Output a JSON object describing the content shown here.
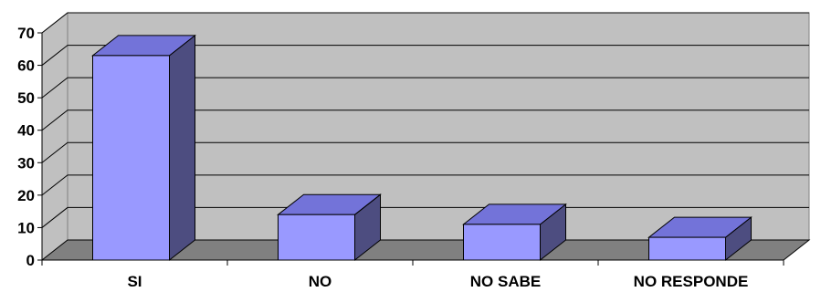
{
  "chart_data": {
    "type": "bar",
    "three_d": true,
    "categories": [
      "SI",
      "NO",
      "NO SABE",
      "NO RESPONDE"
    ],
    "values": [
      63,
      14,
      11,
      7
    ],
    "title": "",
    "xlabel": "",
    "ylabel": "",
    "ylim": [
      0,
      70
    ],
    "yticks": [
      0,
      10,
      20,
      30,
      40,
      50,
      60,
      70
    ],
    "grid": true,
    "legend": "none",
    "colors": {
      "bar_front": "#9999ff",
      "bar_top": "#7373d9",
      "bar_side": "#4d4d80",
      "wall": "#c0c0c0",
      "floor": "#808080",
      "gridline": "#000000"
    }
  }
}
